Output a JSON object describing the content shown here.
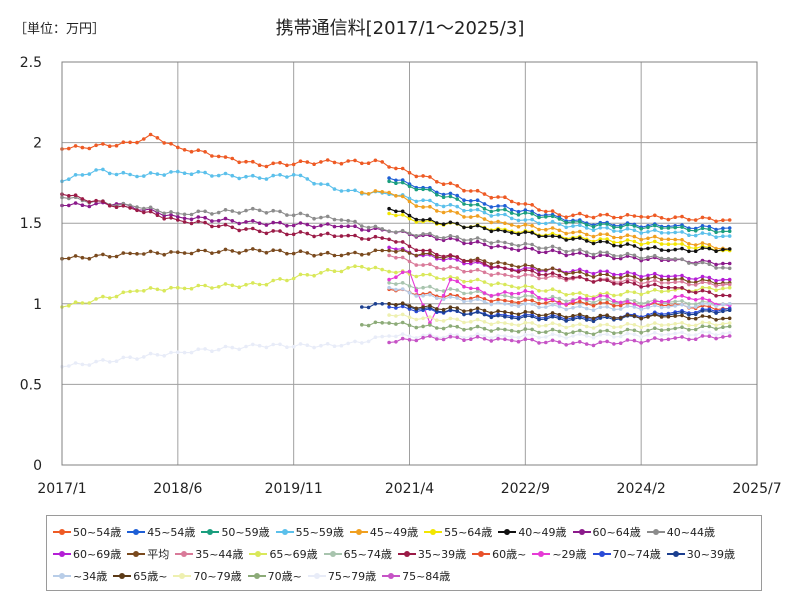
{
  "header": {
    "unit_label": "［単位：万円］"
  },
  "chart_data": {
    "type": "line",
    "title": "携帯通信料[2017/1～2025/3]",
    "ylim": [
      0,
      2.5
    ],
    "yticks": [
      0,
      0.5,
      1,
      1.5,
      2,
      2.5
    ],
    "ytick_labels": [
      "0",
      "0.5",
      "1",
      "1.5",
      "2",
      "2.5"
    ],
    "xlim": [
      "2017/1",
      "2025/7"
    ],
    "xticks": [
      "2017/1",
      "2018/6",
      "2019/11",
      "2021/4",
      "2022/9",
      "2024/2",
      "2025/7"
    ],
    "grid": true,
    "legend_position": "bottom",
    "series": [
      {
        "name": "50~54歳",
        "color": "#ee5a24",
        "points": [
          [
            "2017/1",
            1.96
          ],
          [
            "2017/12",
            2.0
          ],
          [
            "2018/2",
            2.05
          ],
          [
            "2018/6",
            1.97
          ],
          [
            "2019/1",
            1.91
          ],
          [
            "2019/6",
            1.86
          ],
          [
            "2020/3",
            1.88
          ],
          [
            "2020/12",
            1.88
          ],
          [
            "2021/2",
            1.84
          ],
          [
            "2022/1",
            1.7
          ],
          [
            "2022/9",
            1.62
          ],
          [
            "2023/2",
            1.55
          ],
          [
            "2024/2",
            1.54
          ],
          [
            "2025/3",
            1.52
          ]
        ]
      },
      {
        "name": "45~54歳",
        "color": "#1f5fd6",
        "points": [
          [
            "2021/1",
            1.78
          ],
          [
            "2021/6",
            1.72
          ],
          [
            "2022/3",
            1.62
          ],
          [
            "2022/12",
            1.55
          ],
          [
            "2023/6",
            1.5
          ],
          [
            "2024/6",
            1.48
          ],
          [
            "2025/3",
            1.47
          ]
        ]
      },
      {
        "name": "50~59歳",
        "color": "#1a9e7e",
        "points": [
          [
            "2021/1",
            1.76
          ],
          [
            "2021/6",
            1.71
          ],
          [
            "2022/3",
            1.59
          ],
          [
            "2022/12",
            1.54
          ],
          [
            "2023/6",
            1.49
          ],
          [
            "2024/6",
            1.47
          ],
          [
            "2025/3",
            1.45
          ]
        ]
      },
      {
        "name": "55~59歳",
        "color": "#5bc0eb",
        "points": [
          [
            "2017/1",
            1.76
          ],
          [
            "2017/6",
            1.83
          ],
          [
            "2017/12",
            1.79
          ],
          [
            "2018/6",
            1.82
          ],
          [
            "2019/6",
            1.78
          ],
          [
            "2019/11",
            1.8
          ],
          [
            "2020/6",
            1.7
          ],
          [
            "2021/1",
            1.68
          ],
          [
            "2022/1",
            1.58
          ],
          [
            "2022/9",
            1.52
          ],
          [
            "2023/6",
            1.47
          ],
          [
            "2024/6",
            1.44
          ],
          [
            "2025/3",
            1.42
          ]
        ]
      },
      {
        "name": "45~49歳",
        "color": "#f0a020",
        "points": [
          [
            "2020/9",
            1.69
          ],
          [
            "2021/1",
            1.69
          ],
          [
            "2021/6",
            1.6
          ],
          [
            "2022/6",
            1.5
          ],
          [
            "2023/6",
            1.43
          ],
          [
            "2024/6",
            1.4
          ],
          [
            "2025/3",
            1.34
          ]
        ]
      },
      {
        "name": "55~64歳",
        "color": "#f2e600",
        "points": [
          [
            "2021/1",
            1.56
          ],
          [
            "2021/6",
            1.51
          ],
          [
            "2022/6",
            1.46
          ],
          [
            "2023/6",
            1.4
          ],
          [
            "2024/6",
            1.37
          ],
          [
            "2025/3",
            1.33
          ]
        ]
      },
      {
        "name": "40~49歳",
        "color": "#111111",
        "points": [
          [
            "2021/1",
            1.59
          ],
          [
            "2021/6",
            1.52
          ],
          [
            "2022/6",
            1.45
          ],
          [
            "2023/1",
            1.42
          ],
          [
            "2023/6",
            1.39
          ],
          [
            "2024/6",
            1.33
          ],
          [
            "2025/3",
            1.34
          ]
        ]
      },
      {
        "name": "60~64歳",
        "color": "#8b1a8b",
        "points": [
          [
            "2017/1",
            1.61
          ],
          [
            "2017/9",
            1.62
          ],
          [
            "2018/6",
            1.54
          ],
          [
            "2019/6",
            1.5
          ],
          [
            "2020/6",
            1.48
          ],
          [
            "2021/1",
            1.45
          ],
          [
            "2022/6",
            1.35
          ],
          [
            "2023/6",
            1.3
          ],
          [
            "2024/6",
            1.27
          ],
          [
            "2025/3",
            1.25
          ]
        ]
      },
      {
        "name": "40~44歳",
        "color": "#8c8c8c",
        "points": [
          [
            "2017/1",
            1.66
          ],
          [
            "2017/12",
            1.6
          ],
          [
            "2018/6",
            1.56
          ],
          [
            "2019/6",
            1.58
          ],
          [
            "2020/6",
            1.52
          ],
          [
            "2021/1",
            1.45
          ],
          [
            "2022/6",
            1.38
          ],
          [
            "2023/6",
            1.32
          ],
          [
            "2024/6",
            1.28
          ],
          [
            "2025/3",
            1.22
          ]
        ]
      },
      {
        "name": "60~69歳",
        "color": "#b41fd6",
        "points": [
          [
            "2021/1",
            1.35
          ],
          [
            "2021/6",
            1.3
          ],
          [
            "2022/6",
            1.22
          ],
          [
            "2023/6",
            1.2
          ],
          [
            "2024/6",
            1.17
          ],
          [
            "2025/3",
            1.15
          ]
        ]
      },
      {
        "name": "平均",
        "color": "#7a4a1e",
        "points": [
          [
            "2017/1",
            1.28
          ],
          [
            "2017/12",
            1.31
          ],
          [
            "2018/6",
            1.32
          ],
          [
            "2019/6",
            1.33
          ],
          [
            "2020/6",
            1.3
          ],
          [
            "2021/1",
            1.33
          ],
          [
            "2022/6",
            1.25
          ],
          [
            "2023/6",
            1.18
          ],
          [
            "2024/6",
            1.15
          ],
          [
            "2025/3",
            1.13
          ]
        ]
      },
      {
        "name": "35~44歳",
        "color": "#d97a99",
        "points": [
          [
            "2021/1",
            1.3
          ],
          [
            "2021/6",
            1.24
          ],
          [
            "2022/6",
            1.18
          ],
          [
            "2023/6",
            1.15
          ],
          [
            "2024/6",
            1.13
          ],
          [
            "2025/3",
            1.12
          ]
        ]
      },
      {
        "name": "65~69歳",
        "color": "#d9e85a",
        "points": [
          [
            "2017/1",
            0.98
          ],
          [
            "2017/12",
            1.08
          ],
          [
            "2018/6",
            1.1
          ],
          [
            "2019/6",
            1.12
          ],
          [
            "2020/1",
            1.18
          ],
          [
            "2020/9",
            1.23
          ],
          [
            "2021/1",
            1.2
          ],
          [
            "2022/6",
            1.12
          ],
          [
            "2023/6",
            1.05
          ],
          [
            "2024/6",
            1.08
          ],
          [
            "2025/3",
            1.1
          ]
        ]
      },
      {
        "name": "65~74歳",
        "color": "#a8c4ae",
        "points": [
          [
            "2021/1",
            1.13
          ],
          [
            "2021/6",
            1.1
          ],
          [
            "2022/6",
            1.05
          ],
          [
            "2023/6",
            1.02
          ],
          [
            "2024/6",
            1.01
          ],
          [
            "2025/3",
            1.0
          ]
        ]
      },
      {
        "name": "35~39歳",
        "color": "#9b1b47",
        "points": [
          [
            "2017/1",
            1.68
          ],
          [
            "2017/12",
            1.58
          ],
          [
            "2018/6",
            1.52
          ],
          [
            "2019/6",
            1.45
          ],
          [
            "2020/6",
            1.42
          ],
          [
            "2021/1",
            1.4
          ],
          [
            "2021/6",
            1.33
          ],
          [
            "2022/6",
            1.22
          ],
          [
            "2023/6",
            1.15
          ],
          [
            "2024/6",
            1.1
          ],
          [
            "2025/3",
            1.05
          ]
        ]
      },
      {
        "name": "60歳~",
        "color": "#e8512b",
        "points": [
          [
            "2021/1",
            1.09
          ],
          [
            "2021/6",
            1.06
          ],
          [
            "2022/6",
            1.02
          ],
          [
            "2023/6",
            1.0
          ],
          [
            "2024/6",
            0.99
          ],
          [
            "2025/3",
            0.97
          ]
        ]
      },
      {
        "name": "~29歳",
        "color": "#e63ad6",
        "points": [
          [
            "2021/1",
            1.15
          ],
          [
            "2021/4",
            1.2
          ],
          [
            "2021/7",
            0.88
          ],
          [
            "2021/10",
            1.15
          ],
          [
            "2022/4",
            1.05
          ],
          [
            "2022/9",
            1.08
          ],
          [
            "2023/2",
            1.0
          ],
          [
            "2023/8",
            1.05
          ],
          [
            "2024/2",
            0.98
          ],
          [
            "2024/8",
            1.05
          ],
          [
            "2025/3",
            0.99
          ]
        ]
      },
      {
        "name": "70~74歳",
        "color": "#2a4bd7",
        "points": [
          [
            "2021/1",
            0.98
          ],
          [
            "2021/6",
            0.96
          ],
          [
            "2022/6",
            0.93
          ],
          [
            "2023/6",
            0.91
          ],
          [
            "2024/6",
            0.94
          ],
          [
            "2025/3",
            0.97
          ]
        ]
      },
      {
        "name": "30~39歳",
        "color": "#1b3f8f",
        "points": [
          [
            "2020/9",
            0.98
          ],
          [
            "2021/1",
            1.0
          ],
          [
            "2021/6",
            0.97
          ],
          [
            "2022/6",
            0.92
          ],
          [
            "2023/6",
            0.9
          ],
          [
            "2024/6",
            0.93
          ],
          [
            "2025/3",
            0.96
          ]
        ]
      },
      {
        "name": "~34歳",
        "color": "#b8cde8",
        "points": [
          [
            "2021/1",
            1.1
          ],
          [
            "2021/6",
            1.05
          ],
          [
            "2022/6",
            1.0
          ],
          [
            "2023/6",
            0.97
          ],
          [
            "2024/6",
            0.98
          ],
          [
            "2025/3",
            1.0
          ]
        ]
      },
      {
        "name": "65歳~",
        "color": "#5c3a16",
        "points": [
          [
            "2021/1",
            1.0
          ],
          [
            "2021/6",
            0.98
          ],
          [
            "2022/6",
            0.95
          ],
          [
            "2023/6",
            0.92
          ],
          [
            "2024/6",
            0.92
          ],
          [
            "2025/3",
            0.91
          ]
        ]
      },
      {
        "name": "70~79歳",
        "color": "#eef0b0",
        "points": [
          [
            "2021/1",
            0.93
          ],
          [
            "2021/6",
            0.91
          ],
          [
            "2022/6",
            0.88
          ],
          [
            "2023/6",
            0.86
          ],
          [
            "2024/6",
            0.87
          ],
          [
            "2025/3",
            0.88
          ]
        ]
      },
      {
        "name": "70歳~",
        "color": "#8cab78",
        "points": [
          [
            "2020/9",
            0.87
          ],
          [
            "2021/1",
            0.88
          ],
          [
            "2021/6",
            0.86
          ],
          [
            "2022/6",
            0.84
          ],
          [
            "2023/6",
            0.82
          ],
          [
            "2024/6",
            0.84
          ],
          [
            "2025/3",
            0.86
          ]
        ]
      },
      {
        "name": "75~79歳",
        "color": "#e8ecf8",
        "points": [
          [
            "2017/1",
            0.61
          ],
          [
            "2018/6",
            0.7
          ],
          [
            "2019/6",
            0.74
          ],
          [
            "2020/6",
            0.74
          ],
          [
            "2021/1",
            0.8
          ],
          [
            "2022/6",
            0.8
          ],
          [
            "2023/6",
            0.8
          ],
          [
            "2024/6",
            0.81
          ],
          [
            "2025/3",
            0.82
          ]
        ]
      },
      {
        "name": "75~84歳",
        "color": "#c653c6",
        "points": [
          [
            "2021/1",
            0.76
          ],
          [
            "2021/6",
            0.79
          ],
          [
            "2022/6",
            0.78
          ],
          [
            "2023/6",
            0.75
          ],
          [
            "2024/6",
            0.78
          ],
          [
            "2025/3",
            0.8
          ]
        ]
      }
    ]
  }
}
